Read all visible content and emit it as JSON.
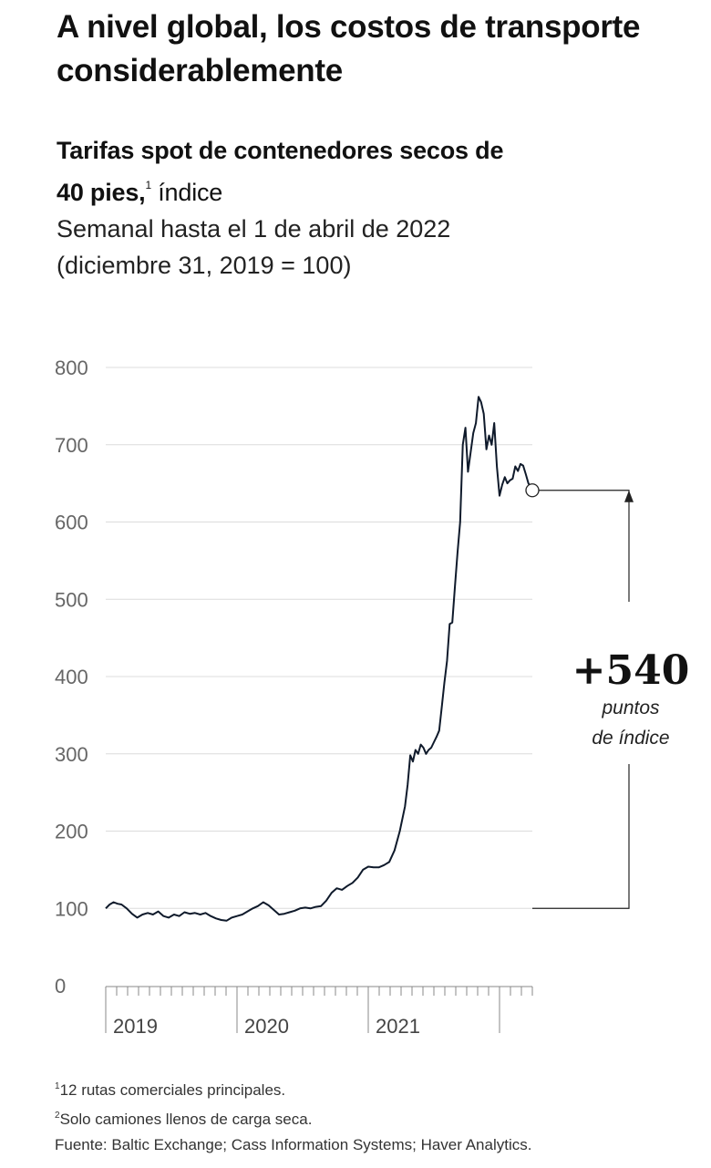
{
  "header": {
    "title_line1": "A nivel global, los costos de transporte",
    "title_line2": "considerablemente"
  },
  "subtitle": {
    "bold_line1": "Tarifas spot de contenedores secos de",
    "bold_line2": "40 pies,",
    "footnote_mark": "1",
    "light_text": " índice"
  },
  "period": {
    "line1": "Semanal hasta el 1 de abril de 2022",
    "line2": "(diciembre 31, 2019 = 100)"
  },
  "chart_data": {
    "type": "line",
    "y_ticks": [
      "0",
      "100",
      "200",
      "300",
      "400",
      "500",
      "600",
      "700",
      "800"
    ],
    "ylim": [
      0,
      800
    ],
    "x_labels": [
      "2019",
      "2020",
      "2021"
    ],
    "grid": true,
    "series": [
      {
        "points": [
          [
            2019.0,
            100
          ],
          [
            2019.03,
            105
          ],
          [
            2019.06,
            108
          ],
          [
            2019.09,
            106
          ],
          [
            2019.12,
            105
          ],
          [
            2019.16,
            100
          ],
          [
            2019.2,
            93
          ],
          [
            2019.24,
            88
          ],
          [
            2019.28,
            92
          ],
          [
            2019.32,
            94
          ],
          [
            2019.36,
            92
          ],
          [
            2019.4,
            96
          ],
          [
            2019.44,
            90
          ],
          [
            2019.48,
            88
          ],
          [
            2019.52,
            92
          ],
          [
            2019.56,
            90
          ],
          [
            2019.6,
            95
          ],
          [
            2019.64,
            93
          ],
          [
            2019.68,
            94
          ],
          [
            2019.72,
            92
          ],
          [
            2019.76,
            94
          ],
          [
            2019.8,
            90
          ],
          [
            2019.84,
            87
          ],
          [
            2019.88,
            85
          ],
          [
            2019.92,
            84
          ],
          [
            2019.96,
            88
          ],
          [
            2020.0,
            90
          ],
          [
            2020.04,
            92
          ],
          [
            2020.08,
            96
          ],
          [
            2020.12,
            100
          ],
          [
            2020.16,
            103
          ],
          [
            2020.2,
            108
          ],
          [
            2020.24,
            104
          ],
          [
            2020.28,
            98
          ],
          [
            2020.32,
            92
          ],
          [
            2020.36,
            93
          ],
          [
            2020.4,
            95
          ],
          [
            2020.44,
            97
          ],
          [
            2020.48,
            100
          ],
          [
            2020.52,
            101
          ],
          [
            2020.56,
            100
          ],
          [
            2020.6,
            102
          ],
          [
            2020.64,
            103
          ],
          [
            2020.68,
            110
          ],
          [
            2020.72,
            120
          ],
          [
            2020.76,
            126
          ],
          [
            2020.8,
            124
          ],
          [
            2020.84,
            129
          ],
          [
            2020.88,
            133
          ],
          [
            2020.92,
            140
          ],
          [
            2020.96,
            150
          ],
          [
            2021.0,
            154
          ],
          [
            2021.04,
            153
          ],
          [
            2021.08,
            153
          ],
          [
            2021.12,
            156
          ],
          [
            2021.16,
            160
          ],
          [
            2021.2,
            175
          ],
          [
            2021.24,
            200
          ],
          [
            2021.28,
            232
          ],
          [
            2021.3,
            260
          ],
          [
            2021.32,
            298
          ],
          [
            2021.34,
            290
          ],
          [
            2021.36,
            305
          ],
          [
            2021.38,
            300
          ],
          [
            2021.4,
            312
          ],
          [
            2021.42,
            308
          ],
          [
            2021.44,
            300
          ],
          [
            2021.46,
            305
          ],
          [
            2021.48,
            308
          ],
          [
            2021.5,
            315
          ],
          [
            2021.52,
            322
          ],
          [
            2021.54,
            330
          ],
          [
            2021.56,
            360
          ],
          [
            2021.58,
            392
          ],
          [
            2021.6,
            420
          ],
          [
            2021.62,
            468
          ],
          [
            2021.64,
            470
          ],
          [
            2021.66,
            515
          ],
          [
            2021.68,
            560
          ],
          [
            2021.7,
            600
          ],
          [
            2021.72,
            700
          ],
          [
            2021.74,
            722
          ],
          [
            2021.76,
            665
          ],
          [
            2021.78,
            690
          ],
          [
            2021.8,
            715
          ],
          [
            2021.82,
            728
          ],
          [
            2021.84,
            762
          ],
          [
            2021.86,
            755
          ],
          [
            2021.88,
            740
          ],
          [
            2021.9,
            694
          ],
          [
            2021.92,
            712
          ],
          [
            2021.94,
            700
          ],
          [
            2021.96,
            728
          ],
          [
            2021.98,
            672
          ],
          [
            2022.0,
            634
          ],
          [
            2022.02,
            648
          ],
          [
            2022.04,
            658
          ],
          [
            2022.06,
            650
          ],
          [
            2022.08,
            654
          ],
          [
            2022.1,
            656
          ],
          [
            2022.12,
            672
          ],
          [
            2022.14,
            666
          ],
          [
            2022.16,
            675
          ],
          [
            2022.18,
            673
          ],
          [
            2022.2,
            662
          ],
          [
            2022.22,
            650
          ],
          [
            2022.25,
            641
          ]
        ]
      }
    ],
    "annotation": {
      "value": "+540",
      "label_line1": "puntos",
      "label_line2": "de índice",
      "from_value": 100,
      "to_value": 641
    }
  },
  "footnotes": {
    "note1_mark": "1",
    "note1_text": "12 rutas comerciales principales.",
    "note2_mark": "2",
    "note2_text": "Solo camiones llenos de carga seca.",
    "source": "Fuente: Baltic Exchange; Cass Information Systems; Haver Analytics."
  }
}
